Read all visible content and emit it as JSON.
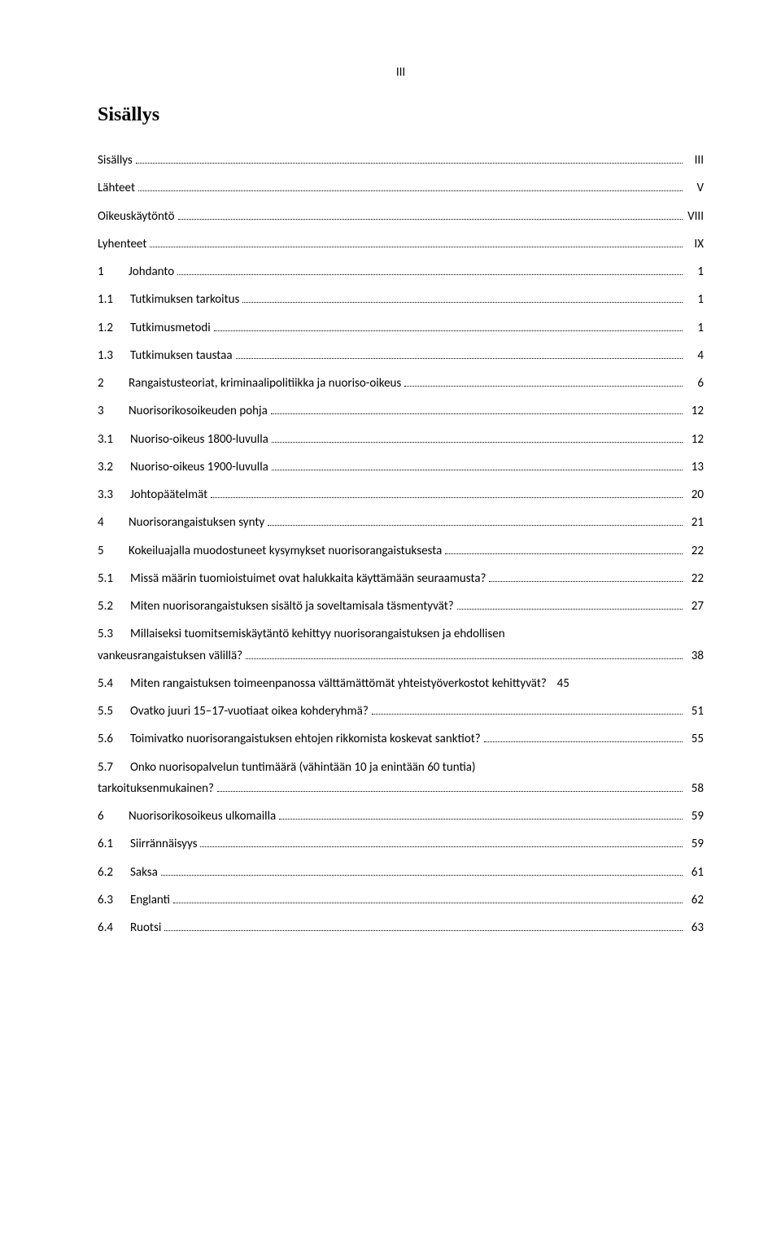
{
  "page_header": "III",
  "title": "Sisällys",
  "colors": {
    "text": "#000000",
    "background": "#ffffff"
  },
  "fonts": {
    "title_family": "Times New Roman",
    "body_family": "Calibri",
    "title_size_pt": 18,
    "body_size_pt": 11
  },
  "toc": [
    {
      "num": "",
      "label": "Sisällys",
      "page": "III",
      "level": 0
    },
    {
      "num": "",
      "label": "Lähteet",
      "page": "V",
      "level": 0
    },
    {
      "num": "",
      "label": "Oikeuskäytöntö",
      "page": "VIII",
      "level": 0
    },
    {
      "num": "",
      "label": "Lyhenteet",
      "page": "IX",
      "level": 0
    },
    {
      "num": "1",
      "label": "Johdanto",
      "page": "1",
      "level": 0,
      "gap": true
    },
    {
      "num": "1.1",
      "label": "Tutkimuksen tarkoitus",
      "page": "1",
      "level": 1
    },
    {
      "num": "1.2",
      "label": "Tutkimusmetodi",
      "page": "1",
      "level": 1
    },
    {
      "num": "1.3",
      "label": "Tutkimuksen taustaa",
      "page": "4",
      "level": 1
    },
    {
      "num": "2",
      "label": "Rangaistusteoriat, kriminaalipolitiikka ja nuoriso-oikeus",
      "page": "6",
      "level": 0,
      "gap": true
    },
    {
      "num": "3",
      "label": "Nuorisorikosoikeuden pohja",
      "page": "12",
      "level": 0,
      "gap": true
    },
    {
      "num": "3.1",
      "label": "Nuoriso-oikeus 1800-luvulla",
      "page": "12",
      "level": 1
    },
    {
      "num": "3.2",
      "label": "Nuoriso-oikeus 1900-luvulla",
      "page": "13",
      "level": 1
    },
    {
      "num": "3.3",
      "label": "Johtopäätelmät",
      "page": "20",
      "level": 1
    },
    {
      "num": "4",
      "label": "Nuorisorangaistuksen synty",
      "page": "21",
      "level": 0,
      "gap": true
    },
    {
      "num": "5",
      "label": "Kokeiluajalla muodostuneet kysymykset nuorisorangaistuksesta",
      "page": "22",
      "level": 0,
      "gap": true
    },
    {
      "num": "5.1",
      "label": "Missä määrin tuomioistuimet ovat halukkaita käyttämään seuraamusta?",
      "page": "22",
      "level": 1
    },
    {
      "num": "5.2",
      "label": "Miten nuorisorangaistuksen sisältö ja soveltamisala täsmentyvät? ",
      "page": "27",
      "level": 1
    },
    {
      "num": "5.3",
      "label1": "Millaiseksi tuomitsemiskäytäntö kehittyy nuorisorangaistuksen ja ehdollisen",
      "label2": "vankeusrangaistuksen välillä?",
      "page": "38",
      "level": 1,
      "twoLine": true
    },
    {
      "num": "5.4",
      "label": "Miten rangaistuksen toimeenpanossa välttämättömät yhteistyöverkostot kehittyvät?",
      "page": "45",
      "level": 1,
      "nodots": true
    },
    {
      "num": "5.5",
      "label": "Ovatko juuri 15–17-vuotiaat oikea kohderyhmä? ",
      "page": "51",
      "level": 1
    },
    {
      "num": "5.6",
      "label": "Toimivatko nuorisorangaistuksen ehtojen rikkomista koskevat sanktiot?",
      "page": "55",
      "level": 1
    },
    {
      "num": "5.7",
      "label1": "Onko nuorisopalvelun tuntimäärä (vähintään 10 ja enintään 60 tuntia)",
      "label2": "tarkoituksenmukainen?",
      "page": "58",
      "level": 1,
      "twoLine": true
    },
    {
      "num": "6",
      "label": "Nuorisorikosoikeus ulkomailla",
      "page": "59",
      "level": 0,
      "gap": true
    },
    {
      "num": "6.1",
      "label": "Siirrännäisyys",
      "page": "59",
      "level": 1
    },
    {
      "num": "6.2",
      "label": "Saksa",
      "page": "61",
      "level": 1
    },
    {
      "num": "6.3",
      "label": "Englanti",
      "page": "62",
      "level": 1
    },
    {
      "num": "6.4",
      "label": "Ruotsi",
      "page": "63",
      "level": 1
    }
  ]
}
